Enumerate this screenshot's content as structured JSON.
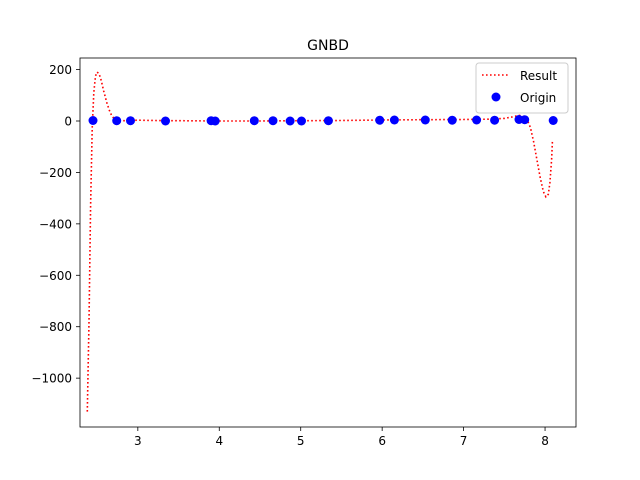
{
  "chart_data": {
    "type": "line",
    "title": "GNBD",
    "xlabel": "",
    "ylabel": "",
    "xlim": [
      2.29,
      8.38
    ],
    "ylim": [
      -1190,
      245
    ],
    "x_ticks": [
      3,
      4,
      5,
      6,
      7,
      8
    ],
    "y_ticks": [
      200,
      0,
      -200,
      -400,
      -600,
      -800,
      -1000
    ],
    "y_tick_labels": [
      "200",
      "0",
      "−200",
      "−400",
      "−600",
      "−800",
      "−1000"
    ],
    "grid": false,
    "legend": {
      "placement": "top-right",
      "entries": [
        "Result",
        "Origin"
      ]
    },
    "series": [
      {
        "name": "Result",
        "style": "dotted-line",
        "color": "#ff0000",
        "x": [
          2.38,
          2.4,
          2.42,
          2.44,
          2.46,
          2.48,
          2.5,
          2.52,
          2.54,
          2.56,
          2.58,
          2.6,
          2.62,
          2.65,
          2.68,
          2.72,
          2.76,
          2.82,
          2.9,
          3.0,
          3.2,
          3.5,
          4.0,
          4.5,
          5.0,
          5.5,
          6.0,
          6.5,
          7.0,
          7.3,
          7.5,
          7.6,
          7.68,
          7.74,
          7.78,
          7.82,
          7.86,
          7.9,
          7.94,
          7.98,
          8.01,
          8.04,
          8.06,
          8.08,
          8.09
        ],
        "y": [
          -1130,
          -780,
          -330,
          -30,
          110,
          175,
          190,
          185,
          170,
          145,
          118,
          95,
          70,
          42,
          20,
          6,
          0,
          1,
          2,
          3,
          2,
          1,
          0,
          0,
          1,
          2,
          4,
          5,
          6,
          7,
          10,
          16,
          22,
          18,
          5,
          -25,
          -80,
          -150,
          -220,
          -275,
          -295,
          -285,
          -240,
          -150,
          -80
        ]
      },
      {
        "name": "Origin",
        "style": "markers",
        "color": "#0000ff",
        "x": [
          2.45,
          2.74,
          2.91,
          3.34,
          3.9,
          3.95,
          4.43,
          4.66,
          4.87,
          5.01,
          5.34,
          5.97,
          6.15,
          6.53,
          6.86,
          7.16,
          7.38,
          7.68,
          7.75,
          8.1
        ],
        "y": [
          2,
          1,
          1,
          0,
          1,
          0,
          1,
          1,
          0,
          0,
          1,
          3,
          4,
          4,
          3,
          4,
          3,
          6,
          5,
          2
        ]
      }
    ]
  }
}
